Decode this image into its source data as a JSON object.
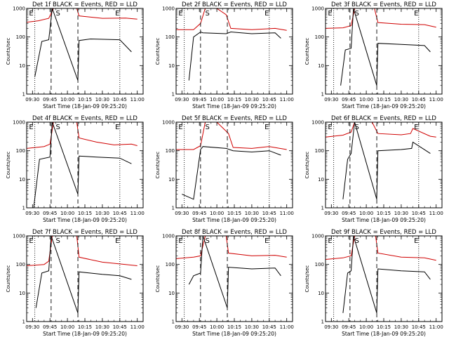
{
  "chart_data": [
    {
      "type": "line",
      "title": "Det 1f BLACK = Events, RED = LLD",
      "ylabel": "Counts/sec",
      "xlabel": "Start Time (18-Jan-09 09:25:20)",
      "y_scale": "log",
      "ylim": [
        1,
        1000
      ],
      "y_ticks": [
        "1",
        "10",
        "100",
        "1000"
      ],
      "x_ticks": [
        "09:30",
        "09:45",
        "10:00",
        "10:15",
        "10:30",
        "10:45",
        "11:00"
      ],
      "markers": [
        "E",
        "S",
        "E"
      ],
      "series": [
        {
          "color": "#d00000",
          "x": [
            "09:25",
            "09:35",
            "09:44",
            "09:48",
            "10:08",
            "10:10",
            "10:30",
            "10:50",
            "11:00"
          ],
          "values": [
            330,
            370,
            450,
            1000,
            1000,
            550,
            450,
            460,
            420
          ]
        },
        {
          "color": "#000000",
          "x": [
            "09:32",
            "09:38",
            "09:44",
            "09:47",
            "10:09",
            "10:10",
            "10:20",
            "10:45",
            "10:55"
          ],
          "values": [
            4,
            70,
            80,
            1000,
            3,
            75,
            85,
            80,
            30
          ]
        }
      ]
    },
    {
      "type": "line",
      "title": "Det 2f BLACK = Events, RED = LLD",
      "ylabel": "Counts/sec",
      "xlabel": "Start Time (18-Jan-09 09:25:20)",
      "y_scale": "log",
      "ylim": [
        1,
        1000
      ],
      "y_ticks": [
        "1",
        "10",
        "100",
        "1000"
      ],
      "x_ticks": [
        "09:30",
        "09:45",
        "10:00",
        "10:15",
        "10:30",
        "10:45",
        "11:00"
      ],
      "markers": [
        "E",
        "S",
        "E"
      ],
      "series": [
        {
          "color": "#d00000",
          "x": [
            "09:25",
            "09:40",
            "09:46",
            "09:50",
            "10:00",
            "10:08",
            "10:12",
            "10:30",
            "10:50",
            "11:00"
          ],
          "values": [
            180,
            180,
            300,
            1000,
            1000,
            600,
            200,
            180,
            200,
            170
          ]
        },
        {
          "color": "#000000",
          "x": [
            "09:36",
            "09:40",
            "09:46",
            "09:48",
            "10:08",
            "10:12",
            "10:30",
            "10:50",
            "10:55"
          ],
          "values": [
            3,
            100,
            150,
            140,
            130,
            150,
            130,
            140,
            90
          ]
        }
      ]
    },
    {
      "type": "line",
      "title": "Det 3f BLACK = Events, RED = LLD",
      "ylabel": "Counts/sec",
      "xlabel": "Start Time (18-Jan-09 09:25:20)",
      "y_scale": "log",
      "ylim": [
        1,
        1000
      ],
      "y_ticks": [
        "1",
        "10",
        "100",
        "1000"
      ],
      "x_ticks": [
        "09:30",
        "09:45",
        "10:00",
        "10:15",
        "10:30",
        "10:45",
        "11:00"
      ],
      "markers": [
        "E",
        "S",
        "E"
      ],
      "series": [
        {
          "color": "#d00000",
          "x": [
            "09:25",
            "09:40",
            "09:47",
            "09:50",
            "10:07",
            "10:10",
            "10:30",
            "10:50",
            "11:00"
          ],
          "values": [
            200,
            210,
            250,
            1000,
            1000,
            320,
            280,
            270,
            220
          ]
        },
        {
          "color": "#000000",
          "x": [
            "09:38",
            "09:42",
            "09:47",
            "09:49",
            "10:09",
            "10:10",
            "10:30",
            "10:50",
            "10:55"
          ],
          "values": [
            2,
            35,
            40,
            1000,
            2,
            60,
            55,
            50,
            30
          ]
        }
      ]
    },
    {
      "type": "line",
      "title": "Det 4f BLACK = Events, RED = LLD",
      "ylabel": "Counts/sec",
      "xlabel": "Start Time (18-Jan-09 09:25:20)",
      "y_scale": "log",
      "ylim": [
        1,
        1000
      ],
      "y_ticks": [
        "1",
        "10",
        "100",
        "1000"
      ],
      "x_ticks": [
        "09:30",
        "09:45",
        "10:00",
        "10:15",
        "10:30",
        "10:45",
        "11:00"
      ],
      "markers": [
        "E",
        "S",
        "E"
      ],
      "series": [
        {
          "color": "#d00000",
          "x": [
            "09:25",
            "09:40",
            "09:45",
            "09:48",
            "10:08",
            "10:10",
            "10:25",
            "10:40",
            "10:55",
            "11:00"
          ],
          "values": [
            120,
            140,
            170,
            1000,
            1000,
            280,
            200,
            160,
            170,
            150
          ]
        },
        {
          "color": "#000000",
          "x": [
            "09:31",
            "09:36",
            "09:45",
            "09:47",
            "10:09",
            "10:10",
            "10:25",
            "10:45",
            "10:55"
          ],
          "values": [
            1,
            50,
            60,
            1000,
            3,
            65,
            60,
            55,
            35
          ]
        }
      ]
    },
    {
      "type": "line",
      "title": "Det 5f BLACK = Events, RED = LLD",
      "ylabel": "Counts/sec",
      "xlabel": "Start Time (18-Jan-09 09:25:20)",
      "y_scale": "log",
      "ylim": [
        1,
        1000
      ],
      "y_ticks": [
        "1",
        "10",
        "100",
        "1000"
      ],
      "x_ticks": [
        "09:30",
        "09:45",
        "10:00",
        "10:15",
        "10:30",
        "10:45",
        "11:00"
      ],
      "markers": [
        "E",
        "S",
        "E"
      ],
      "series": [
        {
          "color": "#d00000",
          "x": [
            "09:25",
            "09:40",
            "09:46",
            "09:50",
            "10:00",
            "10:10",
            "10:14",
            "10:30",
            "10:45",
            "11:00"
          ],
          "values": [
            110,
            110,
            150,
            1000,
            1000,
            400,
            130,
            120,
            140,
            110
          ]
        },
        {
          "color": "#000000",
          "x": [
            "09:30",
            "09:40",
            "09:46",
            "09:48",
            "10:08",
            "10:14",
            "10:30",
            "10:45",
            "10:55"
          ],
          "values": [
            3,
            2,
            110,
            140,
            120,
            100,
            90,
            100,
            70
          ]
        }
      ]
    },
    {
      "type": "line",
      "title": "Det 6f BLACK = Events, RED = LLD",
      "ylabel": "Counts/sec",
      "xlabel": "Start Time (18-Jan-09 09:25:20)",
      "y_scale": "log",
      "ylim": [
        1,
        1000
      ],
      "y_ticks": [
        "1",
        "10",
        "100",
        "1000"
      ],
      "x_ticks": [
        "09:30",
        "09:45",
        "10:00",
        "10:15",
        "10:30",
        "10:45",
        "11:00"
      ],
      "markers": [
        "E",
        "S",
        "E"
      ],
      "series": [
        {
          "color": "#d00000",
          "x": [
            "09:25",
            "09:40",
            "09:47",
            "09:50",
            "10:05",
            "10:10",
            "10:30",
            "10:38",
            "10:40",
            "10:55",
            "11:00"
          ],
          "values": [
            300,
            350,
            450,
            1000,
            1000,
            400,
            360,
            400,
            600,
            320,
            300
          ]
        },
        {
          "color": "#000000",
          "x": [
            "09:40",
            "09:44",
            "09:47",
            "09:50",
            "10:09",
            "10:10",
            "10:30",
            "10:39",
            "10:40",
            "10:55"
          ],
          "values": [
            2,
            50,
            80,
            1000,
            2,
            100,
            110,
            120,
            200,
            80
          ]
        }
      ]
    },
    {
      "type": "line",
      "title": "Det 7f BLACK = Events, RED = LLD",
      "ylabel": "Counts/sec",
      "xlabel": "Start Time (18-Jan-09 09:25:20)",
      "y_scale": "log",
      "ylim": [
        1,
        1000
      ],
      "y_ticks": [
        "1",
        "10",
        "100",
        "1000"
      ],
      "x_ticks": [
        "09:30",
        "09:45",
        "10:00",
        "10:15",
        "10:30",
        "10:45",
        "11:00"
      ],
      "markers": [
        "E",
        "S",
        "E"
      ],
      "series": [
        {
          "color": "#d00000",
          "x": [
            "09:25",
            "09:40",
            "09:44",
            "09:47",
            "10:08",
            "10:10",
            "10:30",
            "10:50",
            "11:00"
          ],
          "values": [
            90,
            100,
            130,
            1000,
            1000,
            180,
            120,
            100,
            90
          ]
        },
        {
          "color": "#000000",
          "x": [
            "09:33",
            "09:38",
            "09:44",
            "09:46",
            "10:09",
            "10:10",
            "10:30",
            "10:45",
            "10:55"
          ],
          "values": [
            3,
            50,
            60,
            1000,
            2,
            55,
            45,
            40,
            30
          ]
        }
      ]
    },
    {
      "type": "line",
      "title": "Det 8f BLACK = Events, RED = LLD",
      "ylabel": "Counts/sec",
      "xlabel": "Start Time (18-Jan-09 09:25:20)",
      "y_scale": "log",
      "ylim": [
        1,
        1000
      ],
      "y_ticks": [
        "1",
        "10",
        "100",
        "1000"
      ],
      "x_ticks": [
        "09:30",
        "09:45",
        "10:00",
        "10:15",
        "10:30",
        "10:45",
        "11:00"
      ],
      "markers": [
        "E",
        "S",
        "E"
      ],
      "series": [
        {
          "color": "#d00000",
          "x": [
            "09:25",
            "09:40",
            "09:46",
            "09:50",
            "10:08",
            "10:10",
            "10:30",
            "10:50",
            "11:00"
          ],
          "values": [
            160,
            180,
            200,
            1000,
            1000,
            250,
            200,
            210,
            180
          ]
        },
        {
          "color": "#000000",
          "x": [
            "09:36",
            "09:40",
            "09:46",
            "09:48",
            "10:09",
            "10:10",
            "10:30",
            "10:50",
            "10:55"
          ],
          "values": [
            20,
            40,
            50,
            1000,
            3,
            80,
            70,
            75,
            40
          ]
        }
      ]
    },
    {
      "type": "line",
      "title": "Det 9f BLACK = Events, RED = LLD",
      "ylabel": "Counts/sec",
      "xlabel": "Start Time (18-Jan-09 09:25:20)",
      "y_scale": "log",
      "ylim": [
        1,
        1000
      ],
      "y_ticks": [
        "1",
        "10",
        "100",
        "1000"
      ],
      "x_ticks": [
        "09:30",
        "09:45",
        "10:00",
        "10:15",
        "10:30",
        "10:45",
        "11:00"
      ],
      "markers": [
        "E",
        "S",
        "E"
      ],
      "series": [
        {
          "color": "#d00000",
          "x": [
            "09:25",
            "09:40",
            "09:47",
            "09:50",
            "10:08",
            "10:10",
            "10:30",
            "10:50",
            "11:00"
          ],
          "values": [
            150,
            170,
            200,
            1000,
            1000,
            250,
            180,
            170,
            140
          ]
        },
        {
          "color": "#000000",
          "x": [
            "09:40",
            "09:44",
            "09:47",
            "09:49",
            "10:09",
            "10:10",
            "10:30",
            "10:50",
            "10:55"
          ],
          "values": [
            2,
            50,
            60,
            1000,
            2,
            70,
            60,
            55,
            30
          ]
        }
      ]
    }
  ]
}
